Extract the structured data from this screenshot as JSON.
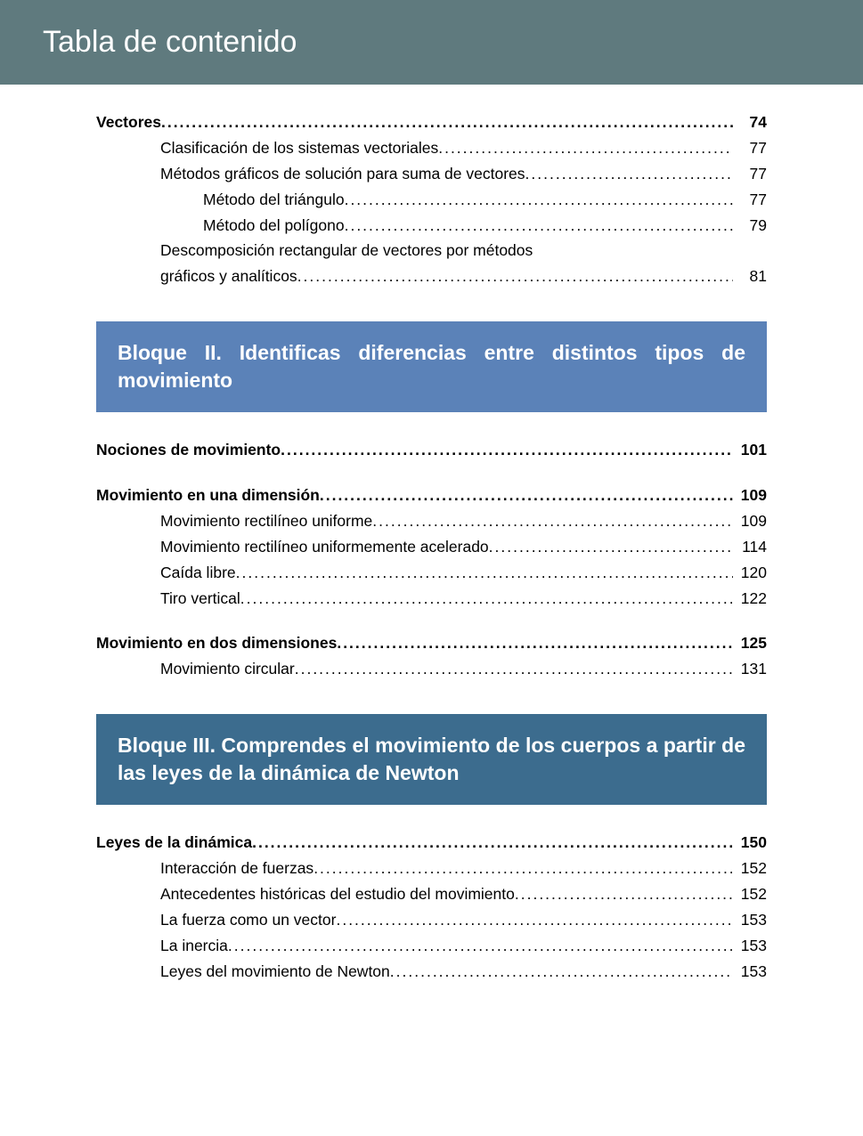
{
  "page_title": "Tabla de contenido",
  "colors": {
    "header_bg": "#5f7a7e",
    "block_light_bg": "#5b82b8",
    "block_dark_bg": "#3c6c8e",
    "text": "#000000",
    "header_text": "#ffffff"
  },
  "entries": {
    "vectores_title": "Vectores",
    "vectores_page": "74",
    "clasif_title": "Clasificación de los sistemas vectoriales",
    "clasif_page": "77",
    "metodos_title": "Métodos gráficos de solución para suma de vectores",
    "metodos_page": "77",
    "triangulo_title": "Método del triángulo ",
    "triangulo_page": "77",
    "poligono_title": "Método del polígono ",
    "poligono_page": "79",
    "descomp_title_line1": "Descomposición rectangular de vectores por métodos",
    "descomp_title_line2": "gráficos y analíticos ",
    "descomp_page": "81",
    "block2_title": "Bloque II. Identificas diferencias entre distintos tipos de movimiento",
    "nociones_title": "Nociones de movimiento",
    "nociones_page": "101",
    "mov1d_title": "Movimiento en una dimensión",
    "mov1d_page": "109",
    "mru_title": "Movimiento rectilíneo uniforme",
    "mru_page": "109",
    "mrua_title": "Movimiento rectilíneo uniformemente acelerado ",
    "mrua_page": "114",
    "caida_title": "Caída libre ",
    "caida_page": "120",
    "tiro_title": "Tiro vertical ",
    "tiro_page": "122",
    "mov2d_title": "Movimiento en dos dimensiones ",
    "mov2d_page": "125",
    "circular_title": "Movimiento circular",
    "circular_page": "131",
    "block3_title": "Bloque III. Comprendes el movimiento de los cuerpos a partir de las leyes de la dinámica de Newton",
    "leyes_title": "Leyes de la dinámica ",
    "leyes_page": "150",
    "interaccion_title": "Interacción de fuerzas ",
    "interaccion_page": "152",
    "antecedentes_title": "Antecedentes históricas del estudio del movimiento",
    "antecedentes_page": "152",
    "fuerzavec_title": "La fuerza como un vector ",
    "fuerzavec_page": "153",
    "inercia_title": "La inercia ",
    "inercia_page": "153",
    "leyesnewton_title": "Leyes del movimiento de Newton",
    "leyesnewton_page": "153"
  }
}
